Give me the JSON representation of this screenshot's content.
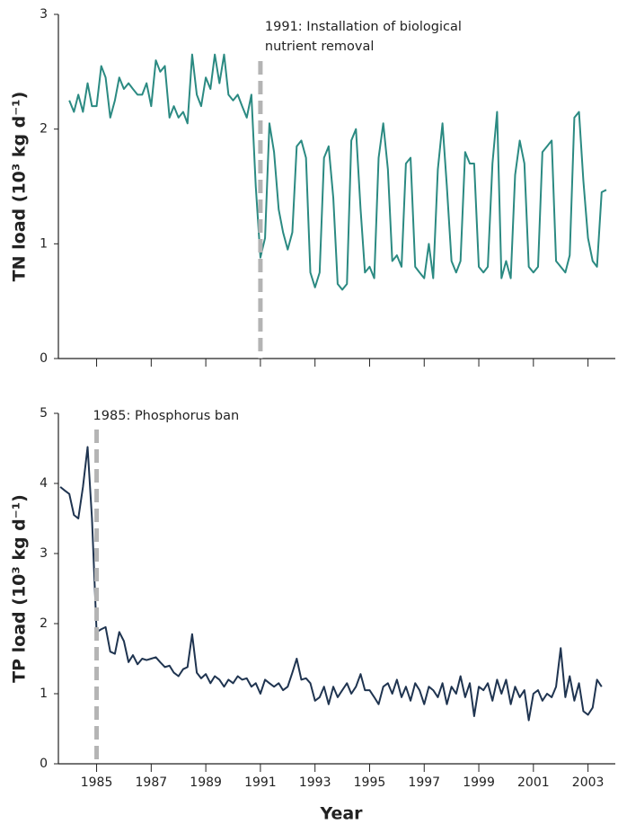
{
  "chart_data": [
    {
      "type": "line",
      "ylabel": "TN load (10³ kg d⁻¹)",
      "x": [
        1984,
        1984.17,
        1984.33,
        1984.5,
        1984.67,
        1984.83,
        1985,
        1985.17,
        1985.33,
        1985.5,
        1985.67,
        1985.83,
        1986,
        1986.17,
        1986.33,
        1986.5,
        1986.67,
        1986.83,
        1987,
        1987.17,
        1987.33,
        1987.5,
        1987.67,
        1987.83,
        1988,
        1988.17,
        1988.33,
        1988.5,
        1988.67,
        1988.83,
        1989,
        1989.17,
        1989.33,
        1989.5,
        1989.67,
        1989.83,
        1990,
        1990.17,
        1990.33,
        1990.5,
        1990.67,
        1990.83,
        1991,
        1991.17,
        1991.33,
        1991.5,
        1991.67,
        1991.83,
        1992,
        1992.17,
        1992.33,
        1992.5,
        1992.67,
        1992.83,
        1993,
        1993.17,
        1993.33,
        1993.5,
        1993.67,
        1993.83,
        1994,
        1994.17,
        1994.33,
        1994.5,
        1994.67,
        1994.83,
        1995,
        1995.17,
        1995.33,
        1995.5,
        1995.67,
        1995.83,
        1996,
        1996.17,
        1996.33,
        1996.5,
        1996.67,
        1996.83,
        1997,
        1997.17,
        1997.33,
        1997.5,
        1997.67,
        1997.83,
        1998,
        1998.17,
        1998.33,
        1998.5,
        1998.67,
        1998.83,
        1999,
        1999.17,
        1999.33,
        1999.5,
        1999.67,
        1999.83,
        2000,
        2000.17,
        2000.33,
        2000.5,
        2000.67,
        2000.83,
        2001,
        2001.17,
        2001.33,
        2001.5,
        2001.67,
        2001.83,
        2002,
        2002.17,
        2002.33,
        2002.5,
        2002.67,
        2002.83,
        2003,
        2003.17,
        2003.33,
        2003.5,
        2003.67
      ],
      "series": [
        {
          "color": "#2b8a82",
          "values": [
            2.25,
            2.15,
            2.3,
            2.15,
            2.4,
            2.2,
            2.2,
            2.55,
            2.45,
            2.1,
            2.25,
            2.45,
            2.35,
            2.4,
            2.35,
            2.3,
            2.3,
            2.4,
            2.2,
            2.6,
            2.5,
            2.55,
            2.1,
            2.2,
            2.1,
            2.15,
            2.05,
            2.65,
            2.3,
            2.2,
            2.45,
            2.35,
            2.65,
            2.4,
            2.65,
            2.3,
            2.25,
            2.3,
            2.2,
            2.1,
            2.3,
            1.5,
            0.88,
            1.05,
            2.05,
            1.8,
            1.3,
            1.1,
            0.95,
            1.1,
            1.85,
            1.9,
            1.75,
            0.75,
            0.62,
            0.75,
            1.75,
            1.85,
            1.4,
            0.65,
            0.6,
            0.65,
            1.9,
            2.0,
            1.3,
            0.75,
            0.8,
            0.7,
            1.75,
            2.05,
            1.65,
            0.85,
            0.9,
            0.8,
            1.7,
            1.75,
            0.8,
            0.75,
            0.7,
            1.0,
            0.7,
            1.65,
            2.05,
            1.5,
            0.85,
            0.75,
            0.85,
            1.8,
            1.7,
            1.7,
            0.8,
            0.75,
            0.8,
            1.7,
            2.15,
            0.7,
            0.85,
            0.7,
            1.6,
            1.9,
            1.7,
            0.8,
            0.75,
            0.8,
            1.8,
            1.85,
            1.9,
            0.85,
            0.8,
            0.75,
            0.9,
            2.1,
            2.15,
            1.55,
            1.05,
            0.85,
            0.8,
            1.45,
            1.47
          ]
        }
      ],
      "xlim": [
        1983.6,
        2004
      ],
      "ylim": [
        0,
        3
      ],
      "yticks": [
        0,
        1,
        2,
        3
      ],
      "xticks": [
        1985,
        1987,
        1989,
        1991,
        1993,
        1995,
        1997,
        1999,
        2001,
        2003
      ],
      "xtick_labels": false,
      "annotation": {
        "x": 1991,
        "lines": [
          "1991: Installation of biological",
          "nutrient removal"
        ]
      }
    },
    {
      "type": "line",
      "ylabel": "TP load (10³ kg d⁻¹)",
      "xlabel": "Year",
      "x": [
        1983.67,
        1983.83,
        1984,
        1984.17,
        1984.33,
        1984.5,
        1984.67,
        1984.83,
        1985,
        1985.17,
        1985.33,
        1985.5,
        1985.67,
        1985.83,
        1986,
        1986.17,
        1986.33,
        1986.5,
        1986.67,
        1986.83,
        1987,
        1987.17,
        1987.33,
        1987.5,
        1987.67,
        1987.83,
        1988,
        1988.17,
        1988.33,
        1988.5,
        1988.67,
        1988.83,
        1989,
        1989.17,
        1989.33,
        1989.5,
        1989.67,
        1989.83,
        1990,
        1990.17,
        1990.33,
        1990.5,
        1990.67,
        1990.83,
        1991,
        1991.17,
        1991.33,
        1991.5,
        1991.67,
        1991.83,
        1992,
        1992.17,
        1992.33,
        1992.5,
        1992.67,
        1992.83,
        1993,
        1993.17,
        1993.33,
        1993.5,
        1993.67,
        1993.83,
        1994,
        1994.17,
        1994.33,
        1994.5,
        1994.67,
        1994.83,
        1995,
        1995.17,
        1995.33,
        1995.5,
        1995.67,
        1995.83,
        1996,
        1996.17,
        1996.33,
        1996.5,
        1996.67,
        1996.83,
        1997,
        1997.17,
        1997.33,
        1997.5,
        1997.67,
        1997.83,
        1998,
        1998.17,
        1998.33,
        1998.5,
        1998.67,
        1998.83,
        1999,
        1999.17,
        1999.33,
        1999.5,
        1999.67,
        1999.83,
        2000,
        2000.17,
        2000.33,
        2000.5,
        2000.67,
        2000.83,
        2001,
        2001.17,
        2001.33,
        2001.5,
        2001.67,
        2001.83,
        2002,
        2002.17,
        2002.33,
        2002.5,
        2002.67,
        2002.83,
        2003,
        2003.17,
        2003.33,
        2003.5
      ],
      "series": [
        {
          "color": "#1f3450",
          "values": [
            3.95,
            3.9,
            3.85,
            3.55,
            3.5,
            3.95,
            4.52,
            3.5,
            1.88,
            1.92,
            1.95,
            1.6,
            1.57,
            1.88,
            1.75,
            1.45,
            1.55,
            1.42,
            1.5,
            1.48,
            1.5,
            1.52,
            1.45,
            1.38,
            1.4,
            1.3,
            1.25,
            1.35,
            1.38,
            1.85,
            1.3,
            1.22,
            1.28,
            1.15,
            1.25,
            1.2,
            1.1,
            1.2,
            1.15,
            1.25,
            1.2,
            1.22,
            1.1,
            1.15,
            1.0,
            1.2,
            1.15,
            1.1,
            1.15,
            1.05,
            1.1,
            1.3,
            1.5,
            1.2,
            1.22,
            1.15,
            0.9,
            0.95,
            1.1,
            0.85,
            1.1,
            0.95,
            1.05,
            1.15,
            1.0,
            1.1,
            1.28,
            1.05,
            1.05,
            0.95,
            0.85,
            1.1,
            1.15,
            1.0,
            1.2,
            0.95,
            1.1,
            0.9,
            1.15,
            1.05,
            0.85,
            1.1,
            1.05,
            0.95,
            1.15,
            0.85,
            1.1,
            1.0,
            1.25,
            0.95,
            1.15,
            0.68,
            1.1,
            1.05,
            1.15,
            0.9,
            1.2,
            1.0,
            1.2,
            0.85,
            1.1,
            0.95,
            1.05,
            0.62,
            1.0,
            1.05,
            0.9,
            1.0,
            0.95,
            1.1,
            1.65,
            0.95,
            1.25,
            0.9,
            1.15,
            0.75,
            0.7,
            0.8,
            1.2,
            1.1
          ]
        }
      ],
      "xlim": [
        1983.6,
        2004
      ],
      "ylim": [
        0,
        5
      ],
      "yticks": [
        0,
        1,
        2,
        3,
        4,
        5
      ],
      "xticks": [
        1985,
        1987,
        1989,
        1991,
        1993,
        1995,
        1997,
        1999,
        2001,
        2003
      ],
      "xtick_labels": true,
      "annotation": {
        "x": 1985,
        "lines": [
          "1985: Phosphorus ban"
        ]
      }
    }
  ]
}
